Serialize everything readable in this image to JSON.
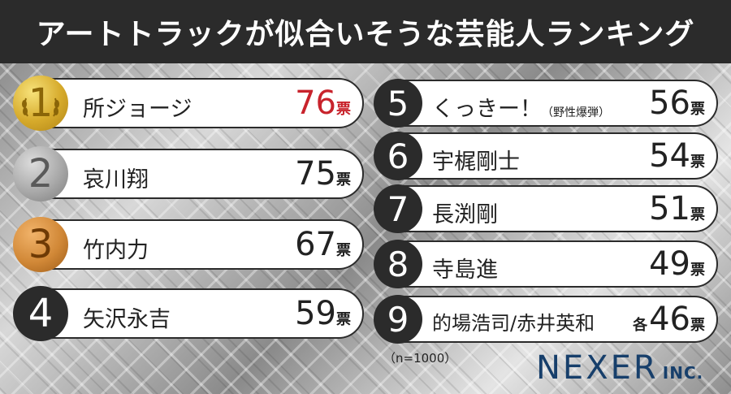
{
  "header": {
    "title": "アートトラックが似合いそうな芸能人ランキング"
  },
  "chart_data": {
    "type": "table",
    "title": "アートトラックが似合いそうな芸能人ランキング",
    "unit": "票",
    "tie_prefix": "各",
    "entries": [
      {
        "rank": "1",
        "name": "所ジョージ",
        "name_sub": "",
        "votes": "76",
        "highlight": true,
        "medal": "gold"
      },
      {
        "rank": "2",
        "name": "哀川翔",
        "name_sub": "",
        "votes": "75",
        "highlight": false,
        "medal": "silver"
      },
      {
        "rank": "3",
        "name": "竹内力",
        "name_sub": "",
        "votes": "67",
        "highlight": false,
        "medal": "bronze"
      },
      {
        "rank": "4",
        "name": "矢沢永吉",
        "name_sub": "",
        "votes": "59",
        "highlight": false,
        "medal": "plain"
      },
      {
        "rank": "5",
        "name": "くっきー！",
        "name_sub": "（野性爆弾）",
        "votes": "56",
        "highlight": false,
        "medal": "plain"
      },
      {
        "rank": "6",
        "name": "宇梶剛士",
        "name_sub": "",
        "votes": "54",
        "highlight": false,
        "medal": "plain"
      },
      {
        "rank": "7",
        "name": "長渕剛",
        "name_sub": "",
        "votes": "51",
        "highlight": false,
        "medal": "plain"
      },
      {
        "rank": "8",
        "name": "寺島進",
        "name_sub": "",
        "votes": "49",
        "highlight": false,
        "medal": "plain"
      },
      {
        "rank": "9",
        "name": "的場浩司/赤井英和",
        "name_sub": "",
        "votes": "46",
        "highlight": false,
        "medal": "plain",
        "tie": true
      }
    ]
  },
  "footer": {
    "sample_note": "（n=1000）",
    "logo_main": "NEXER",
    "logo_suffix": "INC."
  },
  "colors": {
    "highlight": "#c8232c",
    "title_bar": "#2b2b2b",
    "logo": "#173f6b"
  }
}
